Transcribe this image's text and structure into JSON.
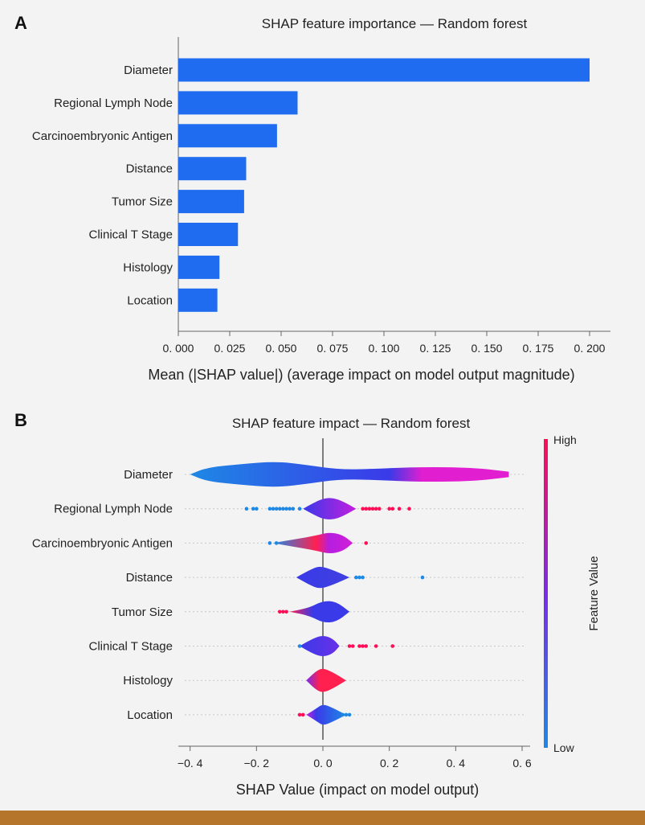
{
  "chart_data": [
    {
      "panel": "A",
      "type": "bar",
      "orientation": "horizontal",
      "title": "SHAP feature importance — Random forest",
      "categories": [
        "Diameter",
        "Regional Lymph Node",
        "Carcinoembryonic Antigen",
        "Distance",
        "Tumor Size",
        "Clinical T Stage",
        "Histology",
        "Location"
      ],
      "values": [
        0.2,
        0.058,
        0.048,
        0.033,
        0.032,
        0.029,
        0.02,
        0.019
      ],
      "xlabel": "Mean (|SHAP value|) (average impact on model output magnitude)",
      "xlim": [
        0,
        0.21
      ],
      "xticks": [
        0,
        0.025,
        0.05,
        0.075,
        0.1,
        0.125,
        0.15,
        0.175,
        0.2
      ],
      "xtick_labels": [
        "0. 000",
        "0. 025",
        "0. 050",
        "0. 075",
        "0. 100",
        "0. 125",
        "0. 150",
        "0. 175",
        "0. 200"
      ],
      "bar_color": "#1f6cf0"
    },
    {
      "panel": "B",
      "type": "violin",
      "title": "SHAP feature impact — Random forest",
      "categories": [
        "Diameter",
        "Regional Lymph Node",
        "Carcinoembryonic Antigen",
        "Distance",
        "Tumor Size",
        "Clinical T Stage",
        "Histology",
        "Location"
      ],
      "xlabel": "SHAP Value (impact on model output)",
      "xlim": [
        -0.42,
        0.6
      ],
      "xticks": [
        -0.4,
        -0.2,
        0,
        0.2,
        0.4,
        0.6
      ],
      "xtick_labels": [
        "−0. 4",
        "−0. 2",
        "0. 0",
        "0. 2",
        "0. 4",
        "0. 6"
      ],
      "colorbar": {
        "label": "Feature Value",
        "high": "High",
        "low": "Low",
        "high_color": "#ff0d57",
        "low_color": "#1e88e5"
      },
      "violins": [
        {
          "shape": [
            [
              -0.4,
              0.0
            ],
            [
              -0.35,
              0.5
            ],
            [
              -0.25,
              0.75
            ],
            [
              -0.14,
              0.95
            ],
            [
              -0.05,
              0.7
            ],
            [
              0.05,
              0.35
            ],
            [
              0.15,
              0.4
            ],
            [
              0.3,
              0.55
            ],
            [
              0.45,
              0.5
            ],
            [
              0.56,
              0.2
            ]
          ],
          "colors": [
            [
              -0.4,
              "#1e88e5"
            ],
            [
              0.2,
              "#3a3ae8"
            ],
            [
              0.3,
              "#e21fd0"
            ],
            [
              0.56,
              "#e21fd0"
            ]
          ]
        },
        {
          "shape": [
            [
              -0.06,
              0.0
            ],
            [
              -0.03,
              0.4
            ],
            [
              0.0,
              0.75
            ],
            [
              0.03,
              0.8
            ],
            [
              0.06,
              0.55
            ],
            [
              0.1,
              0.0
            ]
          ],
          "colors": [
            [
              -0.06,
              "#3a3ae8"
            ],
            [
              0.1,
              "#c31ee0"
            ]
          ],
          "dots_low": [
            -0.23,
            -0.21,
            -0.2,
            -0.16,
            -0.15,
            -0.14,
            -0.13,
            -0.12,
            -0.11,
            -0.1,
            -0.09,
            -0.07
          ],
          "dots_high": [
            0.12,
            0.13,
            0.14,
            0.15,
            0.16,
            0.17,
            0.2,
            0.21,
            0.23,
            0.26
          ]
        },
        {
          "shape": [
            [
              -0.15,
              0.0
            ],
            [
              -0.08,
              0.3
            ],
            [
              -0.02,
              0.55
            ],
            [
              0.02,
              0.8
            ],
            [
              0.06,
              0.6
            ],
            [
              0.09,
              0.0
            ]
          ],
          "colors": [
            [
              -0.15,
              "#1e88e5"
            ],
            [
              -0.02,
              "#ff2050"
            ],
            [
              0.02,
              "#b51ee0"
            ],
            [
              0.09,
              "#d21fd8"
            ]
          ],
          "dots_low": [
            -0.16,
            -0.14
          ],
          "dots_high": [
            0.13
          ]
        },
        {
          "shape": [
            [
              -0.08,
              0.0
            ],
            [
              -0.04,
              0.55
            ],
            [
              -0.01,
              0.85
            ],
            [
              0.03,
              0.55
            ],
            [
              0.08,
              0.0
            ]
          ],
          "colors": [
            [
              -0.08,
              "#3a3ae8"
            ],
            [
              0.08,
              "#4040e0"
            ]
          ],
          "dots_low": [
            0.1,
            0.11,
            0.12,
            0.3
          ],
          "dots_high": []
        },
        {
          "shape": [
            [
              -0.1,
              0.0
            ],
            [
              -0.04,
              0.3
            ],
            [
              0.0,
              0.8
            ],
            [
              0.04,
              0.75
            ],
            [
              0.08,
              0.0
            ]
          ],
          "colors": [
            [
              -0.1,
              "#ff2050"
            ],
            [
              -0.03,
              "#3a3ae8"
            ],
            [
              0.08,
              "#3a3ae8"
            ]
          ],
          "dots_low": [],
          "dots_high": [
            -0.13,
            -0.12,
            -0.11
          ]
        },
        {
          "shape": [
            [
              -0.07,
              0.0
            ],
            [
              -0.03,
              0.55
            ],
            [
              0.0,
              0.8
            ],
            [
              0.03,
              0.55
            ],
            [
              0.05,
              0.0
            ]
          ],
          "colors": [
            [
              -0.07,
              "#3a3ae8"
            ],
            [
              0.05,
              "#6a30e8"
            ]
          ],
          "dots_low": [
            -0.07
          ],
          "dots_high": [
            0.08,
            0.09,
            0.11,
            0.12,
            0.13,
            0.16,
            0.21
          ]
        },
        {
          "shape": [
            [
              -0.05,
              0.0
            ],
            [
              -0.02,
              0.7
            ],
            [
              0.0,
              0.9
            ],
            [
              0.03,
              0.6
            ],
            [
              0.07,
              0.0
            ]
          ],
          "colors": [
            [
              -0.05,
              "#7a2ce8"
            ],
            [
              -0.01,
              "#ff2050"
            ],
            [
              0.07,
              "#ff2050"
            ]
          ],
          "dots_low": [],
          "dots_high": []
        },
        {
          "shape": [
            [
              -0.05,
              0.0
            ],
            [
              -0.02,
              0.45
            ],
            [
              0.0,
              0.8
            ],
            [
              0.03,
              0.5
            ],
            [
              0.07,
              0.0
            ]
          ],
          "colors": [
            [
              -0.05,
              "#c31ee0"
            ],
            [
              -0.02,
              "#3a3ae8"
            ],
            [
              0.07,
              "#1e88e5"
            ]
          ],
          "dots_low": [
            0.06,
            0.07,
            0.08
          ],
          "dots_high": [
            -0.07,
            -0.06
          ]
        }
      ]
    }
  ]
}
